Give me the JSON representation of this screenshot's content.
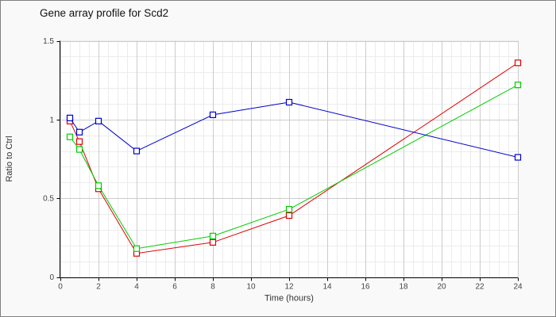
{
  "panel": {
    "background": "#f9f9f9",
    "border_color": "#7f7f7f"
  },
  "chart_data": {
    "type": "line",
    "title": "Gene array profile for Scd2",
    "xlabel": "Time (hours)",
    "ylabel": "Ratio to Ctrl",
    "xlim": [
      0,
      24
    ],
    "ylim": [
      0,
      1.5
    ],
    "x_major_ticks": [
      0,
      2,
      4,
      6,
      8,
      10,
      12,
      14,
      16,
      18,
      20,
      22,
      24
    ],
    "y_major_ticks": [
      0,
      0.5,
      1,
      1.5
    ],
    "x_minor_step": 0.5,
    "y_minor_step": 0.1,
    "grid": "on",
    "legend": "none",
    "marker": "open-square",
    "x": [
      0.5,
      1,
      2,
      4,
      8,
      12,
      24
    ],
    "series": [
      {
        "name": "red-series",
        "color": "#dd0000",
        "values": [
          0.99,
          0.86,
          0.56,
          0.15,
          0.22,
          0.39,
          1.36
        ]
      },
      {
        "name": "green-series",
        "color": "#00cc00",
        "values": [
          0.89,
          0.81,
          0.58,
          0.18,
          0.26,
          0.43,
          1.22
        ]
      },
      {
        "name": "blue-series",
        "color": "#0000cc",
        "values": [
          1.01,
          0.92,
          0.99,
          0.8,
          1.03,
          1.11,
          0.76
        ]
      }
    ],
    "colors": {
      "grid_major": "#cccccc",
      "grid_minor": "#ececec",
      "axis": "#000000",
      "tick_label": "#444444",
      "axis_label": "#333333",
      "plot_background": "#ffffff"
    }
  }
}
